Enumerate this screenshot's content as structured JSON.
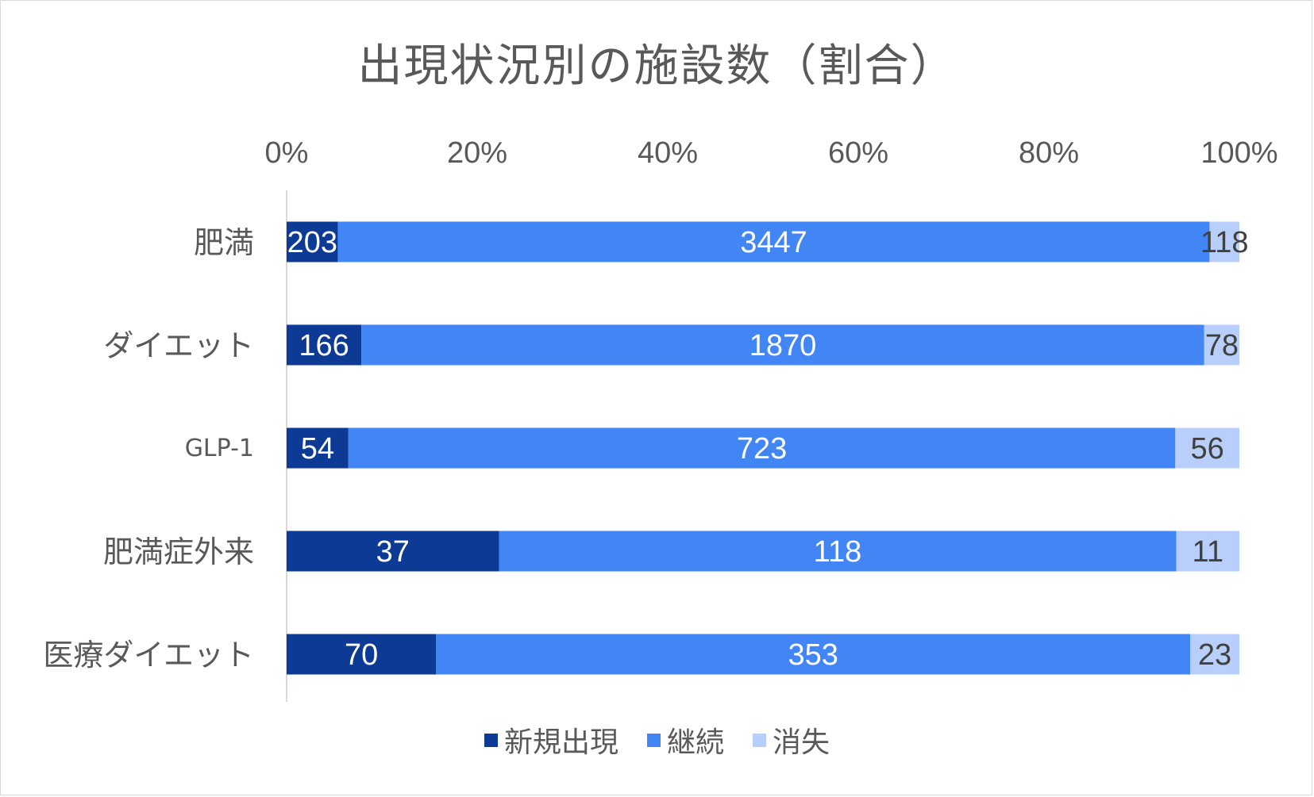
{
  "chart_data": {
    "type": "bar",
    "orientation": "horizontal",
    "stacked": "percent",
    "title": "出現状況別の施設数（割合）",
    "categories": [
      "肥満",
      "ダイエット",
      "GLP-1",
      "肥満症外来",
      "医療ダイエット"
    ],
    "series": [
      {
        "name": "新規出現",
        "values": [
          203,
          166,
          54,
          37,
          70
        ],
        "color": "#0d3a94",
        "label_color": "#ffffff"
      },
      {
        "name": "継続",
        "values": [
          3447,
          1870,
          723,
          118,
          353
        ],
        "color": "#4285f4",
        "label_color": "#ffffff"
      },
      {
        "name": "消失",
        "values": [
          118,
          78,
          56,
          11,
          23
        ],
        "color": "#b7cffa",
        "label_color": "#404040"
      }
    ],
    "x_axis": {
      "ticks": [
        "0%",
        "20%",
        "40%",
        "60%",
        "80%",
        "100%"
      ],
      "range": [
        0,
        100
      ],
      "position": "top"
    },
    "legend": {
      "position": "bottom"
    },
    "grid": false
  }
}
